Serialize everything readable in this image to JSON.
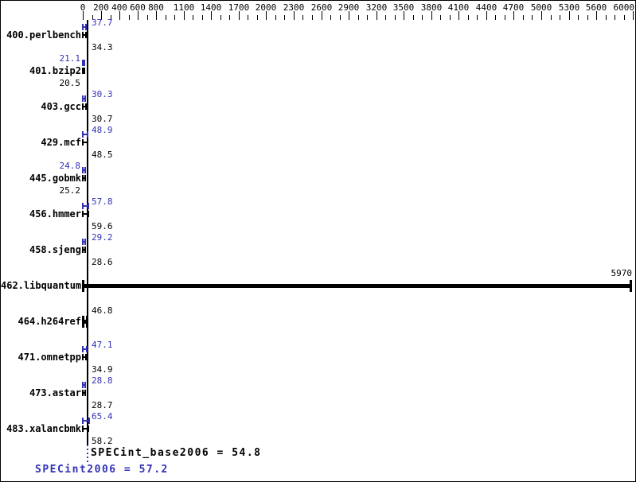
{
  "chart": {
    "colors": {
      "base": "#000000",
      "peak": "#3232b4",
      "background": "#ffffff",
      "border": "#000000"
    },
    "axis": {
      "major_ticks": [
        0,
        200,
        400,
        600,
        800,
        1100,
        1400,
        1700,
        2000,
        2300,
        2600,
        2900,
        3200,
        3500,
        3800,
        4100,
        4400,
        4700,
        5000,
        5300,
        5600,
        6000
      ],
      "minor_step": 100,
      "max": 6000
    }
  },
  "benchmarks": [
    {
      "name": "400.perlbench",
      "peak": 37.7,
      "base": 34.3,
      "side": "right"
    },
    {
      "name": "401.bzip2",
      "peak": 21.1,
      "base": 20.5,
      "side": "left"
    },
    {
      "name": "403.gcc",
      "peak": 30.3,
      "base": 30.7,
      "side": "right"
    },
    {
      "name": "429.mcf",
      "peak": 48.9,
      "base": 48.5,
      "side": "right"
    },
    {
      "name": "445.gobmk",
      "peak": 24.8,
      "base": 25.2,
      "side": "left"
    },
    {
      "name": "456.hmmer",
      "peak": 57.8,
      "base": 59.6,
      "side": "right"
    },
    {
      "name": "458.sjeng",
      "peak": 29.2,
      "base": 28.6,
      "side": "right"
    },
    {
      "name": "462.libquantum",
      "single": 5970,
      "label_at": "bar_end"
    },
    {
      "name": "464.h264ref",
      "single": 46.8,
      "side": "right"
    },
    {
      "name": "471.omnetpp",
      "peak": 47.1,
      "base": 34.9,
      "side": "right"
    },
    {
      "name": "473.astar",
      "peak": 28.8,
      "base": 28.7,
      "side": "right"
    },
    {
      "name": "483.xalancbmk",
      "peak": 65.4,
      "base": 58.2,
      "side": "right"
    }
  ],
  "summary": {
    "base_text": "SPECint_base2006 = 54.8",
    "peak_text": "SPECint2006 = 57.2",
    "base_value": 54.8,
    "peak_value": 57.2
  },
  "chart_data": {
    "type": "bar",
    "orientation": "horizontal",
    "categories": [
      "400.perlbench",
      "401.bzip2",
      "403.gcc",
      "429.mcf",
      "445.gobmk",
      "456.hmmer",
      "458.sjeng",
      "462.libquantum",
      "464.h264ref",
      "471.omnetpp",
      "473.astar",
      "483.xalancbmk"
    ],
    "series": [
      {
        "name": "peak",
        "color": "#3232b4",
        "values": [
          37.7,
          21.1,
          30.3,
          48.9,
          24.8,
          57.8,
          29.2,
          5970,
          46.8,
          47.1,
          28.8,
          65.4
        ]
      },
      {
        "name": "base",
        "color": "#000000",
        "values": [
          34.3,
          20.5,
          30.7,
          48.5,
          25.2,
          59.6,
          28.6,
          5970,
          46.8,
          34.9,
          28.7,
          58.2
        ]
      }
    ],
    "xlim": [
      0,
      6000
    ],
    "x_major_ticks": [
      0,
      200,
      400,
      600,
      800,
      1100,
      1400,
      1700,
      2000,
      2300,
      2600,
      2900,
      3200,
      3500,
      3800,
      4100,
      4400,
      4700,
      5000,
      5300,
      5600,
      6000
    ],
    "x_minor_step": 100,
    "grid": false,
    "legend": false,
    "annotations": [
      "SPECint_base2006 = 54.8",
      "SPECint2006 = 57.2"
    ]
  }
}
